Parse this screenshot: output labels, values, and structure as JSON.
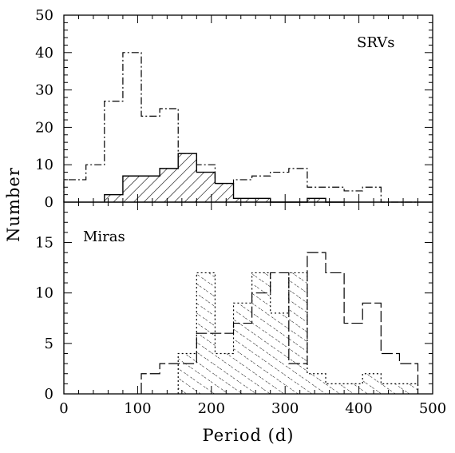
{
  "chart_data": [
    {
      "type": "histogram",
      "panel_label": "SRVs",
      "ylabel": "Number",
      "xlim": [
        0,
        500
      ],
      "ylim": [
        0,
        50
      ],
      "xticks": [
        0,
        100,
        200,
        300,
        400,
        500
      ],
      "yticks": [
        0,
        10,
        20,
        30,
        40,
        50
      ],
      "series": [
        {
          "style": "dash-dot-step",
          "edges": [
            0,
            30,
            55,
            80,
            105,
            130,
            155,
            180,
            205,
            230,
            255,
            280,
            305,
            330,
            355,
            380,
            405,
            430,
            455,
            480
          ],
          "counts": [
            6,
            10,
            27,
            40,
            23,
            25,
            13,
            10,
            5,
            6,
            7,
            8,
            9,
            4,
            4,
            3,
            4,
            0,
            0
          ]
        },
        {
          "style": "solid-step-diagonal-hatch",
          "edges": [
            55,
            80,
            105,
            130,
            155,
            180,
            205,
            230,
            255,
            280,
            305,
            330,
            355,
            380
          ],
          "counts": [
            2,
            7,
            7,
            9,
            13,
            8,
            5,
            1,
            1,
            0,
            0,
            1,
            0
          ]
        }
      ]
    },
    {
      "type": "histogram",
      "panel_label": "Miras",
      "xlabel": "Period (d)",
      "ylabel": "Number",
      "xlim": [
        0,
        500
      ],
      "ylim": [
        0,
        19
      ],
      "xticks": [
        0,
        100,
        200,
        300,
        400,
        500
      ],
      "yticks": [
        0,
        5,
        10,
        15
      ],
      "series": [
        {
          "style": "long-dash-step",
          "edges": [
            105,
            130,
            155,
            180,
            205,
            230,
            255,
            280,
            305,
            330,
            355,
            380,
            405,
            430,
            455,
            480
          ],
          "counts": [
            2,
            3,
            3,
            6,
            6,
            7,
            10,
            12,
            3,
            14,
            12,
            7,
            9,
            4,
            3
          ]
        },
        {
          "style": "dotted-step-dense-hatch",
          "edges": [
            155,
            180,
            205,
            230,
            255,
            280,
            305,
            330,
            355,
            380,
            405,
            430,
            455,
            480
          ],
          "counts": [
            4,
            12,
            4,
            9,
            12,
            8,
            12,
            2,
            1,
            1,
            2,
            1,
            1
          ]
        }
      ]
    }
  ]
}
